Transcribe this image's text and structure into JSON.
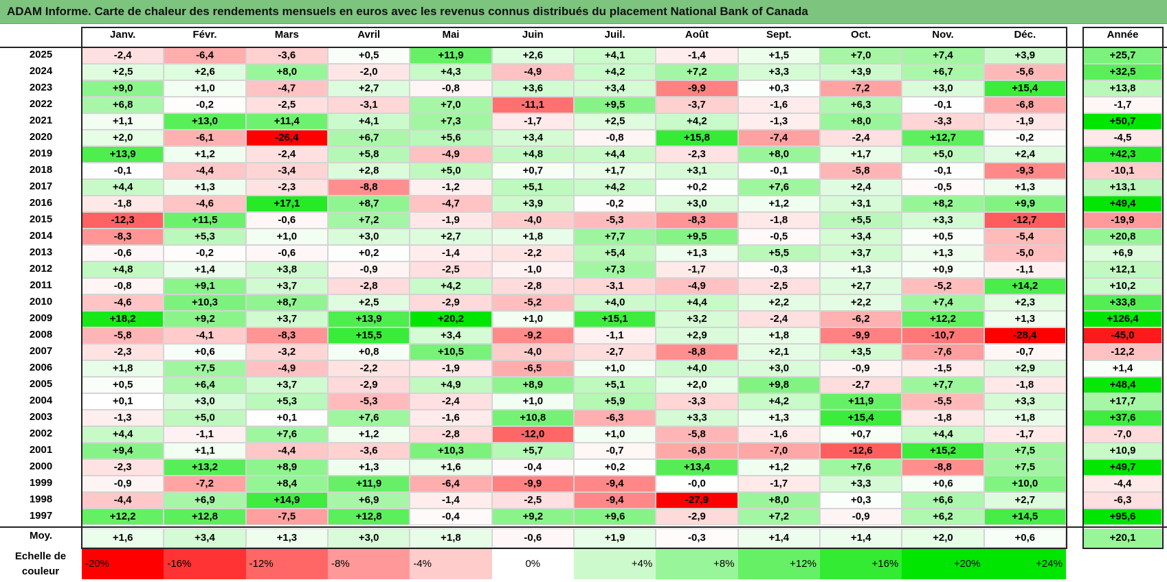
{
  "title": "ADAM Informe. Carte de chaleur des rendements mensuels en euros avec les revenus connus distribués du placement National Bank of Canada",
  "chart_data": {
    "type": "heatmap",
    "title": "ADAM Informe. Carte de chaleur des rendements mensuels en euros avec les revenus connus distribués du placement National Bank of Canada",
    "columns": [
      "Janv.",
      "Févr.",
      "Mars",
      "Avril",
      "Mai",
      "Juin",
      "Juil.",
      "Août",
      "Sept.",
      "Oct.",
      "Nov.",
      "Déc."
    ],
    "annual_header": "Année",
    "rows": [
      {
        "year": "2025",
        "values": [
          "-2,4",
          "-6,4",
          "-3,6",
          "+0,5",
          "+11,9",
          "+2,6",
          "+4,1",
          "-1,4",
          "+1,5",
          "+7,0",
          "+7,4",
          "+3,9"
        ],
        "annual": "+25,7"
      },
      {
        "year": "2024",
        "values": [
          "+2,5",
          "+2,6",
          "+8,0",
          "-2,0",
          "+4,3",
          "-4,9",
          "+4,2",
          "+7,2",
          "+3,3",
          "+3,9",
          "+6,7",
          "-5,6"
        ],
        "annual": "+32,5"
      },
      {
        "year": "2023",
        "values": [
          "+9,0",
          "+1,0",
          "-4,7",
          "+2,7",
          "-0,8",
          "+3,6",
          "+3,4",
          "-9,9",
          "+0,3",
          "-7,2",
          "+3,0",
          "+15,4"
        ],
        "annual": "+13,8"
      },
      {
        "year": "2022",
        "values": [
          "+6,8",
          "-0,2",
          "-2,5",
          "-3,1",
          "+7,0",
          "-11,1",
          "+9,5",
          "-3,7",
          "-1,6",
          "+6,3",
          "-0,1",
          "-6,8"
        ],
        "annual": "-1,7"
      },
      {
        "year": "2021",
        "values": [
          "+1,1",
          "+13,0",
          "+11,4",
          "+4,1",
          "+7,3",
          "-1,7",
          "+2,5",
          "+4,2",
          "-1,3",
          "+8,0",
          "-3,3",
          "-1,9"
        ],
        "annual": "+50,7"
      },
      {
        "year": "2020",
        "values": [
          "+2,0",
          "-6,1",
          "-26,4",
          "+6,7",
          "+5,6",
          "+3,4",
          "-0,8",
          "+15,8",
          "-7,4",
          "-2,4",
          "+12,7",
          "-0,2"
        ],
        "annual": "-4,5"
      },
      {
        "year": "2019",
        "values": [
          "+13,9",
          "+1,2",
          "-2,4",
          "+5,8",
          "-4,9",
          "+4,8",
          "+4,4",
          "-2,3",
          "+8,0",
          "+1,7",
          "+5,0",
          "+2,4"
        ],
        "annual": "+42,3"
      },
      {
        "year": "2018",
        "values": [
          "-0,1",
          "-4,4",
          "-3,4",
          "+2,8",
          "+5,0",
          "+0,7",
          "+1,7",
          "+3,1",
          "-0,1",
          "-5,8",
          "-0,1",
          "-9,3"
        ],
        "annual": "-10,1"
      },
      {
        "year": "2017",
        "values": [
          "+4,4",
          "+1,3",
          "-2,3",
          "-8,8",
          "-1,2",
          "+5,1",
          "+4,2",
          "+0,2",
          "+7,6",
          "+2,4",
          "-0,5",
          "+1,3"
        ],
        "annual": "+13,1"
      },
      {
        "year": "2016",
        "values": [
          "-1,8",
          "-4,6",
          "+17,1",
          "+8,7",
          "-4,7",
          "+3,9",
          "-0,2",
          "+3,0",
          "+1,2",
          "+3,1",
          "+8,2",
          "+9,9"
        ],
        "annual": "+49,4"
      },
      {
        "year": "2015",
        "values": [
          "-12,3",
          "+11,5",
          "-0,6",
          "+7,2",
          "-1,9",
          "-4,0",
          "-5,3",
          "-8,3",
          "-1,8",
          "+5,5",
          "+3,3",
          "-12,7"
        ],
        "annual": "-19,9"
      },
      {
        "year": "2014",
        "values": [
          "-8,3",
          "+5,3",
          "+1,0",
          "+3,0",
          "+2,7",
          "+1,8",
          "+7,7",
          "+9,5",
          "-0,5",
          "+3,4",
          "+0,5",
          "-5,4"
        ],
        "annual": "+20,8"
      },
      {
        "year": "2013",
        "values": [
          "-0,6",
          "-0,2",
          "-0,6",
          "+0,2",
          "-1,4",
          "-2,2",
          "+5,4",
          "+1,3",
          "+5,5",
          "+3,7",
          "+1,3",
          "-5,0"
        ],
        "annual": "+6,9"
      },
      {
        "year": "2012",
        "values": [
          "+4,8",
          "+1,4",
          "+3,8",
          "-0,9",
          "-2,5",
          "-1,0",
          "+7,3",
          "-1,7",
          "-0,3",
          "+1,3",
          "+0,9",
          "-1,1"
        ],
        "annual": "+12,1"
      },
      {
        "year": "2011",
        "values": [
          "-0,8",
          "+9,1",
          "+3,7",
          "-2,8",
          "+4,2",
          "-2,8",
          "-3,1",
          "-4,9",
          "-2,5",
          "+2,7",
          "-5,2",
          "+14,2"
        ],
        "annual": "+10,2"
      },
      {
        "year": "2010",
        "values": [
          "-4,6",
          "+10,3",
          "+8,7",
          "+2,5",
          "-2,9",
          "-5,2",
          "+4,0",
          "+4,4",
          "+2,2",
          "+2,2",
          "+7,4",
          "+2,3"
        ],
        "annual": "+33,8"
      },
      {
        "year": "2009",
        "values": [
          "+18,2",
          "+9,2",
          "+3,7",
          "+13,9",
          "+20,2",
          "+1,0",
          "+15,1",
          "+3,2",
          "-2,4",
          "-6,2",
          "+12,2",
          "+1,3"
        ],
        "annual": "+126,4"
      },
      {
        "year": "2008",
        "values": [
          "-5,8",
          "-4,1",
          "-8,3",
          "+15,5",
          "+3,4",
          "-9,2",
          "-1,1",
          "+2,9",
          "+1,8",
          "-9,9",
          "-10,7",
          "-28,4"
        ],
        "annual": "-45,0"
      },
      {
        "year": "2007",
        "values": [
          "-2,3",
          "+0,6",
          "-3,2",
          "+0,8",
          "+10,5",
          "-4,0",
          "-2,7",
          "-8,8",
          "+2,1",
          "+3,5",
          "-7,6",
          "-0,7"
        ],
        "annual": "-12,2"
      },
      {
        "year": "2006",
        "values": [
          "+1,8",
          "+7,5",
          "-4,9",
          "-2,2",
          "-1,9",
          "-6,5",
          "+1,0",
          "+4,0",
          "+3,0",
          "-0,9",
          "-1,5",
          "+2,9"
        ],
        "annual": "+1,4"
      },
      {
        "year": "2005",
        "values": [
          "+0,5",
          "+6,4",
          "+3,7",
          "-2,9",
          "+4,9",
          "+8,9",
          "+5,1",
          "+2,0",
          "+9,8",
          "-2,7",
          "+7,7",
          "-1,8"
        ],
        "annual": "+48,4"
      },
      {
        "year": "2004",
        "values": [
          "+0,1",
          "+3,0",
          "+5,3",
          "-5,3",
          "-2,4",
          "+1,0",
          "+5,9",
          "-3,3",
          "+4,2",
          "+11,9",
          "-5,5",
          "+3,3"
        ],
        "annual": "+17,7"
      },
      {
        "year": "2003",
        "values": [
          "-1,3",
          "+5,0",
          "+0,1",
          "+7,6",
          "-1,6",
          "+10,8",
          "-6,3",
          "+3,3",
          "+1,3",
          "+15,4",
          "-1,8",
          "+1,8"
        ],
        "annual": "+37,6"
      },
      {
        "year": "2002",
        "values": [
          "+4,4",
          "-1,1",
          "+7,6",
          "+1,2",
          "-2,8",
          "-12,0",
          "+1,0",
          "-5,8",
          "-1,6",
          "+0,7",
          "+4,4",
          "-1,7"
        ],
        "annual": "-7,0"
      },
      {
        "year": "2001",
        "values": [
          "+9,4",
          "+1,1",
          "-4,4",
          "-3,6",
          "+10,3",
          "+5,7",
          "-0,7",
          "-6,8",
          "-7,0",
          "-12,6",
          "+15,2",
          "+7,5"
        ],
        "annual": "+10,9"
      },
      {
        "year": "2000",
        "values": [
          "-2,3",
          "+13,2",
          "+8,9",
          "+1,3",
          "+1,6",
          "-0,4",
          "+0,2",
          "+13,4",
          "+1,2",
          "+7,6",
          "-8,8",
          "+7,5"
        ],
        "annual": "+49,7"
      },
      {
        "year": "1999",
        "values": [
          "-0,9",
          "-7,2",
          "+8,4",
          "+11,9",
          "-6,4",
          "-9,9",
          "-9,4",
          "-0,0",
          "-1,7",
          "+3,3",
          "+0,6",
          "+10,0"
        ],
        "annual": "-4,4"
      },
      {
        "year": "1998",
        "values": [
          "-4,4",
          "+6,9",
          "+14,9",
          "+6,9",
          "-1,4",
          "-2,5",
          "-9,4",
          "-27,9",
          "+8,0",
          "+0,3",
          "+6,6",
          "+2,7"
        ],
        "annual": "-6,3"
      },
      {
        "year": "1997",
        "values": [
          "+12,2",
          "+12,8",
          "-7,5",
          "+12,8",
          "-0,4",
          "+9,2",
          "+9,6",
          "-2,9",
          "+7,2",
          "-0,9",
          "+6,2",
          "+14,5"
        ],
        "annual": "+95,6"
      }
    ],
    "average": {
      "label": "Moy.",
      "values": [
        "+1,6",
        "+3,4",
        "+1,3",
        "+3,0",
        "+1,8",
        "-0,6",
        "+1,9",
        "-0,3",
        "+1,4",
        "+1,4",
        "+2,0",
        "+0,6"
      ],
      "annual": "+20,1"
    },
    "scale": {
      "label": "Echelle de couleur",
      "stops": [
        {
          "label": "-20%",
          "value": -20
        },
        {
          "label": "-16%",
          "value": -16
        },
        {
          "label": "-12%",
          "value": -12
        },
        {
          "label": "-8%",
          "value": -8
        },
        {
          "label": "-4%",
          "value": -4
        },
        {
          "label": "0%",
          "value": 0
        },
        {
          "label": "+4%",
          "value": 4
        },
        {
          "label": "+8%",
          "value": 8
        },
        {
          "label": "+12%",
          "value": 12
        },
        {
          "label": "+16%",
          "value": 16
        },
        {
          "label": "+20%",
          "value": 20
        },
        {
          "label": "+24%",
          "value": 24
        }
      ]
    },
    "colors": {
      "negative_max": "#ff0000",
      "neutral": "#ffffff",
      "positive_max": "#00cc00",
      "title_background": "#7dc47f"
    }
  }
}
